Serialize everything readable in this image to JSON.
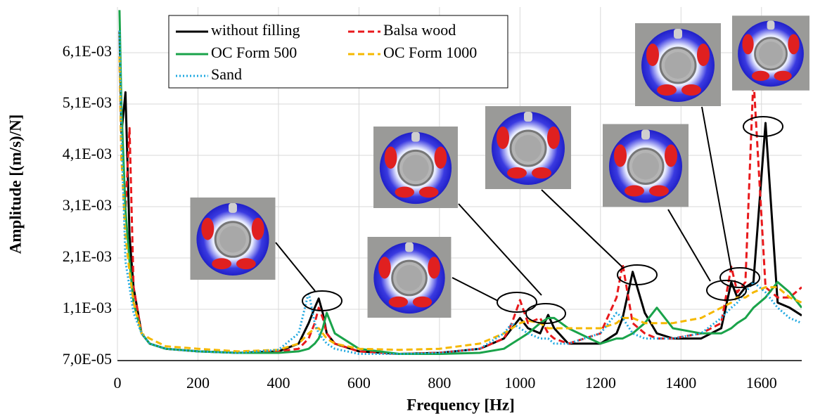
{
  "chart_data": {
    "type": "line",
    "x_label": "Frequency [Hz]",
    "y_label": "Amplitude [(m/s)/N]",
    "x": [
      5,
      10,
      20,
      30,
      40,
      60,
      80,
      120,
      200,
      300,
      400,
      450,
      475,
      490,
      500,
      510,
      520,
      540,
      600,
      700,
      800,
      900,
      960,
      980,
      1000,
      1020,
      1050,
      1070,
      1085,
      1120,
      1200,
      1240,
      1255,
      1280,
      1310,
      1340,
      1380,
      1450,
      1500,
      1525,
      1540,
      1560,
      1580,
      1610,
      1640,
      1670,
      1700
    ],
    "series": [
      {
        "name": "without filling",
        "color": "#000000",
        "dash": "solid",
        "values": [
          0.0065,
          0.0045,
          0.0053,
          0.0025,
          0.0015,
          0.0006,
          0.0004,
          0.0003,
          0.00025,
          0.00022,
          0.00025,
          0.0004,
          0.0008,
          0.0011,
          0.00128,
          0.001,
          0.0006,
          0.0004,
          0.00025,
          0.0002,
          0.00022,
          0.0003,
          0.0005,
          0.0007,
          0.0009,
          0.0007,
          0.0006,
          0.00096,
          0.0007,
          0.0004,
          0.0004,
          0.0006,
          0.0009,
          0.0018,
          0.001,
          0.0006,
          0.0005,
          0.0005,
          0.0007,
          0.0016,
          0.0013,
          0.0015,
          0.0016,
          0.0047,
          0.0012,
          0.0011,
          0.00095
        ]
      },
      {
        "name": "Balsa wood",
        "color": "#e8191c",
        "dash": "dashed",
        "values": [
          0.006,
          0.004,
          0.003,
          0.0046,
          0.0015,
          0.0006,
          0.0004,
          0.0003,
          0.00025,
          0.00022,
          0.00025,
          0.0003,
          0.0005,
          0.0008,
          0.0011,
          0.0009,
          0.0006,
          0.0004,
          0.00025,
          0.0002,
          0.00022,
          0.0003,
          0.0005,
          0.0008,
          0.00125,
          0.0008,
          0.0009,
          0.0006,
          0.0005,
          0.0004,
          0.0006,
          0.0013,
          0.00195,
          0.0008,
          0.0006,
          0.0005,
          0.0005,
          0.0006,
          0.0008,
          0.0019,
          0.0014,
          0.0016,
          0.0056,
          0.0015,
          0.0013,
          0.0013,
          0.0015
        ]
      },
      {
        "name": "OC Form 500",
        "color": "#1aa34a",
        "dash": "solid",
        "values": [
          0.0069,
          0.005,
          0.003,
          0.002,
          0.0012,
          0.0006,
          0.0004,
          0.0003,
          0.00025,
          0.00022,
          0.00022,
          0.00025,
          0.0003,
          0.0004,
          0.0005,
          0.0007,
          0.001,
          0.0006,
          0.0003,
          0.0002,
          0.0002,
          0.00022,
          0.0003,
          0.0004,
          0.0005,
          0.0006,
          0.0008,
          0.0009,
          0.0009,
          0.0007,
          0.0004,
          0.0005,
          0.0005,
          0.0006,
          0.0008,
          0.0011,
          0.0007,
          0.0006,
          0.0006,
          0.0007,
          0.0008,
          0.0009,
          0.0011,
          0.0013,
          0.0016,
          0.0014,
          0.0011
        ]
      },
      {
        "name": "OC Form 1000",
        "color": "#f5b800",
        "dash": "dashed",
        "values": [
          0.006,
          0.004,
          0.0025,
          0.0018,
          0.0012,
          0.0006,
          0.0005,
          0.00035,
          0.0003,
          0.00025,
          0.00028,
          0.0004,
          0.0006,
          0.0007,
          0.0007,
          0.0006,
          0.0005,
          0.0004,
          0.0003,
          0.00028,
          0.0003,
          0.0004,
          0.0006,
          0.0007,
          0.0008,
          0.00085,
          0.0008,
          0.0007,
          0.0007,
          0.0007,
          0.0007,
          0.0008,
          0.0009,
          0.0009,
          0.0008,
          0.0008,
          0.0008,
          0.0009,
          0.0011,
          0.0012,
          0.0013,
          0.0013,
          0.0014,
          0.0015,
          0.0015,
          0.0013,
          0.0012
        ]
      },
      {
        "name": "Sand",
        "color": "#1fa8e0",
        "dash": "dotted",
        "values": [
          0.0065,
          0.0045,
          0.002,
          0.0015,
          0.001,
          0.0006,
          0.0004,
          0.0003,
          0.00025,
          0.00022,
          0.00028,
          0.0006,
          0.0014,
          0.0008,
          0.0006,
          0.0005,
          0.0004,
          0.0003,
          0.0002,
          0.0002,
          0.00022,
          0.0003,
          0.0006,
          0.0008,
          0.0007,
          0.0006,
          0.0005,
          0.0005,
          0.0004,
          0.0004,
          0.0006,
          0.001,
          0.0009,
          0.0006,
          0.0005,
          0.0005,
          0.0005,
          0.0006,
          0.0009,
          0.0011,
          0.0012,
          0.0014,
          0.0016,
          0.0014,
          0.0011,
          0.0009,
          0.0008
        ]
      }
    ],
    "xlim": [
      0,
      1700
    ],
    "xticks": [
      0,
      200,
      400,
      600,
      800,
      1000,
      1200,
      1400,
      1600
    ],
    "ylim": [
      7e-05,
      0.00696
    ],
    "yticks": [
      {
        "value": 7e-05,
        "label": "7,0E-05"
      },
      {
        "value": 0.00107,
        "label": "1,1E-03"
      },
      {
        "value": 0.00207,
        "label": "2,1E-03"
      },
      {
        "value": 0.00307,
        "label": "3,1E-03"
      },
      {
        "value": 0.00407,
        "label": "4,1E-03"
      },
      {
        "value": 0.00507,
        "label": "5,1E-03"
      },
      {
        "value": 0.00607,
        "label": "6,1E-03"
      }
    ],
    "grid": true
  }
}
